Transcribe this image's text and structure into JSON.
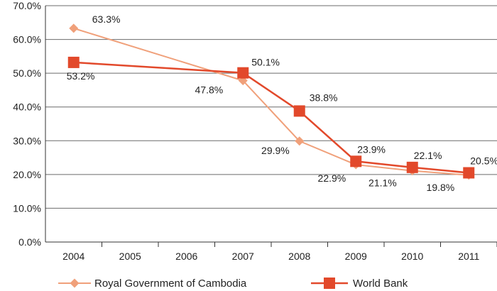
{
  "chart_data": {
    "type": "line",
    "categories": [
      "2004",
      "2005",
      "2006",
      "2007",
      "2008",
      "2009",
      "2010",
      "2011"
    ],
    "ylim": [
      0,
      70
    ],
    "yticks": [
      0,
      10,
      20,
      30,
      40,
      50,
      60,
      70
    ],
    "ytick_labels": [
      "0.0%",
      "10.0%",
      "20.0%",
      "30.0%",
      "40.0%",
      "50.0%",
      "60.0%",
      "70.0%"
    ],
    "grid": true,
    "legend_position": "bottom",
    "series": [
      {
        "name": "Royal Government of Cambodia",
        "color": "#F0A07A",
        "marker": "diamond",
        "points": [
          {
            "x": "2004",
            "y": 63.3,
            "label": "63.3%"
          },
          {
            "x": "2007",
            "y": 47.8,
            "label": "47.8%"
          },
          {
            "x": "2008",
            "y": 29.9,
            "label": "29.9%"
          },
          {
            "x": "2009",
            "y": 22.9,
            "label": "22.9%"
          },
          {
            "x": "2010",
            "y": 21.1,
            "label": "21.1%"
          },
          {
            "x": "2011",
            "y": 19.8,
            "label": "19.8%"
          }
        ]
      },
      {
        "name": "World Bank",
        "color": "#E2492B",
        "marker": "square",
        "points": [
          {
            "x": "2004",
            "y": 53.2,
            "label": "53.2%"
          },
          {
            "x": "2007",
            "y": 50.1,
            "label": "50.1%"
          },
          {
            "x": "2008",
            "y": 38.8,
            "label": "38.8%"
          },
          {
            "x": "2009",
            "y": 23.9,
            "label": "23.9%"
          },
          {
            "x": "2010",
            "y": 22.1,
            "label": "22.1%"
          },
          {
            "x": "2011",
            "y": 20.5,
            "label": "20.5%"
          }
        ]
      }
    ]
  }
}
